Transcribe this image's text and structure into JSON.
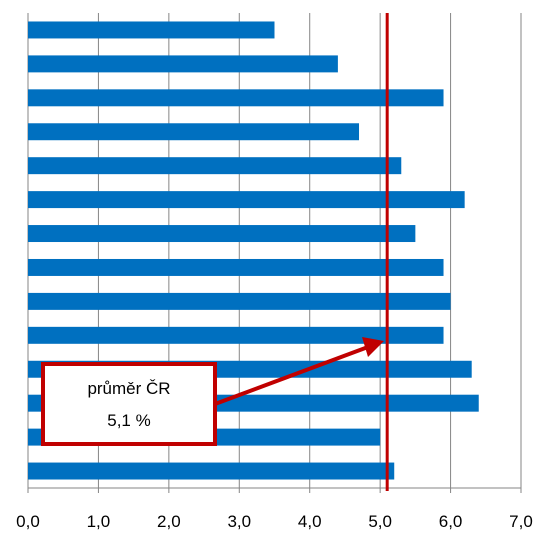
{
  "chart_data": {
    "type": "bar",
    "orientation": "horizontal",
    "title": "",
    "xlabel": "",
    "ylabel": "",
    "categories": [
      "",
      "",
      "",
      "",
      "",
      "",
      "",
      "",
      "",
      "",
      "",
      "",
      "",
      ""
    ],
    "values": [
      3.5,
      4.4,
      5.9,
      4.7,
      5.3,
      6.2,
      5.5,
      5.9,
      6.0,
      5.9,
      6.3,
      6.4,
      5.0,
      5.2
    ],
    "xlim": [
      0,
      7
    ],
    "x_ticks": [
      "0,0",
      "1,0",
      "2,0",
      "3,0",
      "4,0",
      "5,0",
      "6,0",
      "7,0"
    ],
    "grid": "vertical",
    "bar_color": "#0070C0",
    "reference_line": {
      "value": 5.1,
      "color": "#C00000"
    },
    "annotation": {
      "line1": "průměr ČR",
      "line2": "5,1 %",
      "border_color": "#C00000"
    }
  }
}
